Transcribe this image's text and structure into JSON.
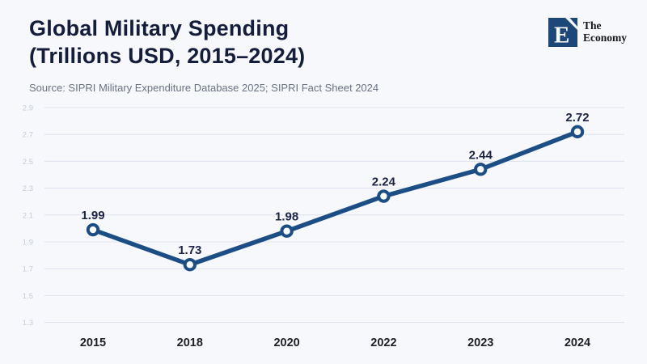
{
  "header": {
    "title_line1": "Global Military Spending",
    "title_line2": "(Trillions USD, 2015–2024)",
    "source": "Source: SIPRI Military Expenditure Database 2025; SIPRI Fact Sheet 2024"
  },
  "logo": {
    "letter": "E",
    "name_line1": "The",
    "name_line2": "Economy"
  },
  "chart_data": {
    "type": "line",
    "title": "Global Military Spending (Trillions USD, 2015–2024)",
    "source": "Source: SIPRI Military Expenditure Database 2025; SIPRI Fact Sheet 2024",
    "categories": [
      "2015",
      "2018",
      "2020",
      "2022",
      "2023",
      "2024"
    ],
    "values": [
      1.99,
      1.73,
      1.98,
      2.24,
      2.44,
      2.72
    ],
    "point_labels": [
      "1.99",
      "1.73",
      "1.98",
      "2.24",
      "2.44",
      "2.72"
    ],
    "xlabel": "",
    "ylabel": "",
    "ylim": [
      1.3,
      2.9
    ],
    "yticks": [
      1.3,
      1.5,
      1.7,
      1.9,
      2.1,
      2.3,
      2.5,
      2.7,
      2.9
    ],
    "grid": true,
    "legend": "none",
    "colors": {
      "background": "#f7f8fc",
      "line": "#1c4e86",
      "marker_fill": "#ffffff",
      "grid": "#dde2ec",
      "tick_label": "#c4cbd9",
      "value_label": "#1b2445",
      "axis_label": "#1d1e26",
      "title": "#141d3c",
      "source": "#6a7282",
      "logo_navy": "#1c4879"
    }
  }
}
